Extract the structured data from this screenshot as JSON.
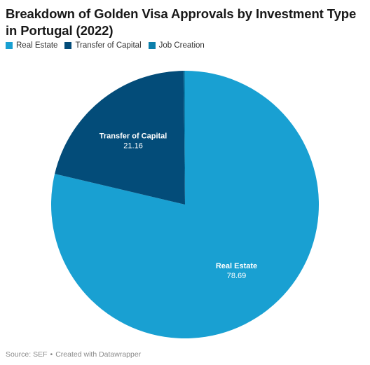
{
  "header": {
    "title": "Breakdown of Golden Visa Approvals by Investment Type in Portugal (2022)"
  },
  "footer": {
    "source": "Source: SEF",
    "credit": "Created with Datawrapper"
  },
  "chart_data": {
    "type": "pie",
    "title": "Breakdown of Golden Visa Approvals by Investment Type in Portugal (2022)",
    "legend_position": "top-left",
    "slices": [
      {
        "label": "Real Estate",
        "value": 78.69,
        "color": "#19a0d2",
        "label_color": "#ffffff"
      },
      {
        "label": "Transfer of Capital",
        "value": 21.16,
        "color": "#034c79",
        "label_color": "#ffffff"
      },
      {
        "label": "Job Creation",
        "value": 0.15,
        "color": "#0b7fab",
        "label_color": "#ffffff"
      }
    ],
    "labeled_slices": [
      "Real Estate",
      "Transfer of Capital"
    ]
  }
}
